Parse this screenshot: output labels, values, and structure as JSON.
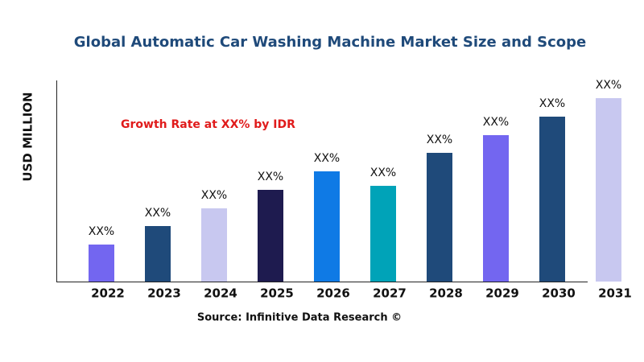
{
  "chart_data": {
    "type": "bar",
    "title": "Global Automatic Car Washing Machine Market Size and Scope",
    "y_label": "USD MILLION",
    "annotation": "Growth Rate at XX% by IDR",
    "source": "Source: Infinitive Data Research ©",
    "categories": [
      "2022",
      "2023",
      "2024",
      "2025",
      "2026",
      "2027",
      "2028",
      "2029",
      "2030",
      "2031"
    ],
    "values": [
      46,
      69,
      91,
      114,
      137,
      119,
      160,
      182,
      205,
      228
    ],
    "value_labels": [
      "XX%",
      "XX%",
      "XX%",
      "XX%",
      "XX%",
      "XX%",
      "XX%",
      "XX%",
      "XX%",
      "XX%"
    ],
    "colors": [
      "#7366f0",
      "#1f4a7a",
      "#c8c8f0",
      "#1e1b4f",
      "#0f7ae5",
      "#00a3b8",
      "#1f4a7a",
      "#7366f0",
      "#1f4a7a",
      "#c8c8f0"
    ]
  }
}
